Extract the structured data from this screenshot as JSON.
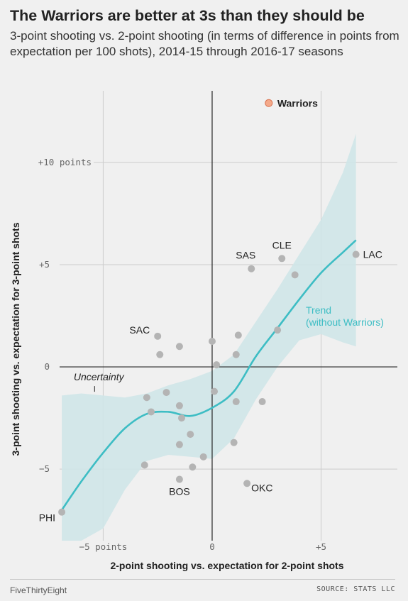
{
  "header": {
    "title": "The Warriors are better at 3s than they should be",
    "subtitle": "3-point shooting vs. 2-point shooting (in terms of difference in points from expectation per 100 shots), 2014-15 through 2016-17 seasons"
  },
  "footer": {
    "brand": "FiveThirtyEight",
    "source": "SOURCE: STATS LLC"
  },
  "colors": {
    "trend": "#3dbdc4",
    "band": "#cfe6e8",
    "point": "#b4b4b4",
    "warriors": "#f4a98a"
  },
  "chart_data": {
    "type": "scatter",
    "xlabel": "2-point shooting vs. expectation for 2-point shots",
    "ylabel": "3-point shooting vs. expectation for 3-point shots",
    "xlim": [
      -7,
      8.5
    ],
    "ylim": [
      -8.5,
      13.5
    ],
    "x_ticks": [
      {
        "value": -5,
        "label": "−5 points"
      },
      {
        "value": 0,
        "label": "0"
      },
      {
        "value": 5,
        "label": "+5"
      }
    ],
    "y_ticks": [
      {
        "value": 10,
        "label": "+10 points"
      },
      {
        "value": 5,
        "label": "+5"
      },
      {
        "value": 0,
        "label": "0"
      },
      {
        "value": -5,
        "label": "−5"
      }
    ],
    "grid": true,
    "points": [
      {
        "x": -6.9,
        "y": -7.1,
        "label": "PHI"
      },
      {
        "x": -1.5,
        "y": -5.5,
        "label": "BOS"
      },
      {
        "x": 1.6,
        "y": -5.7,
        "label": "OKC"
      },
      {
        "x": -2.5,
        "y": 1.5,
        "label": "SAC"
      },
      {
        "x": 1.8,
        "y": 4.8,
        "label": "SAS"
      },
      {
        "x": 3.2,
        "y": 5.3,
        "label": "CLE"
      },
      {
        "x": 6.6,
        "y": 5.5,
        "label": "LAC"
      },
      {
        "x": 2.6,
        "y": 12.9,
        "label": "Warriors",
        "highlight": true
      },
      {
        "x": -2.4,
        "y": 0.6,
        "label": ""
      },
      {
        "x": -1.5,
        "y": 1.0,
        "label": ""
      },
      {
        "x": 0.0,
        "y": 1.25,
        "label": ""
      },
      {
        "x": 1.2,
        "y": 1.55,
        "label": ""
      },
      {
        "x": 1.1,
        "y": 0.6,
        "label": ""
      },
      {
        "x": 0.2,
        "y": 0.1,
        "label": ""
      },
      {
        "x": 3.0,
        "y": 1.8,
        "label": ""
      },
      {
        "x": 3.8,
        "y": 4.5,
        "label": ""
      },
      {
        "x": -3.0,
        "y": -1.5,
        "label": ""
      },
      {
        "x": -2.1,
        "y": -1.25,
        "label": ""
      },
      {
        "x": -2.8,
        "y": -2.2,
        "label": ""
      },
      {
        "x": -1.5,
        "y": -1.9,
        "label": ""
      },
      {
        "x": -1.4,
        "y": -2.5,
        "label": ""
      },
      {
        "x": 0.1,
        "y": -1.2,
        "label": ""
      },
      {
        "x": 1.1,
        "y": -1.7,
        "label": ""
      },
      {
        "x": 2.3,
        "y": -1.7,
        "label": ""
      },
      {
        "x": -1.0,
        "y": -3.3,
        "label": ""
      },
      {
        "x": -1.5,
        "y": -3.8,
        "label": ""
      },
      {
        "x": 1.0,
        "y": -3.7,
        "label": ""
      },
      {
        "x": -0.4,
        "y": -4.4,
        "label": ""
      },
      {
        "x": -0.9,
        "y": -4.9,
        "label": ""
      },
      {
        "x": -3.1,
        "y": -4.8,
        "label": ""
      }
    ],
    "trend": {
      "label": "Trend (without Warriors)",
      "label_lines": [
        "Trend",
        "(without Warriors)"
      ],
      "x": [
        -6.9,
        -6,
        -5,
        -4,
        -3,
        -2,
        -1,
        0,
        1,
        2,
        3,
        4,
        5,
        6,
        6.6
      ],
      "y": [
        -7.0,
        -5.6,
        -4.2,
        -3.0,
        -2.3,
        -2.2,
        -2.4,
        -2.0,
        -1.2,
        0.5,
        1.9,
        3.3,
        4.6,
        5.6,
        6.2
      ],
      "upper": [
        -1.4,
        -1.3,
        -1.4,
        -1.5,
        -1.3,
        -0.9,
        -0.6,
        -0.2,
        0.6,
        2.2,
        3.8,
        5.5,
        7.2,
        9.5,
        11.4
      ],
      "lower": [
        -8.5,
        -8.5,
        -7.9,
        -6.0,
        -4.6,
        -4.3,
        -4.4,
        -4.5,
        -3.5,
        -1.6,
        0.0,
        1.3,
        1.6,
        1.2,
        1.0
      ]
    },
    "annotations": [
      {
        "text": "Uncertainty",
        "x": -5.2,
        "y": -0.8
      }
    ]
  }
}
